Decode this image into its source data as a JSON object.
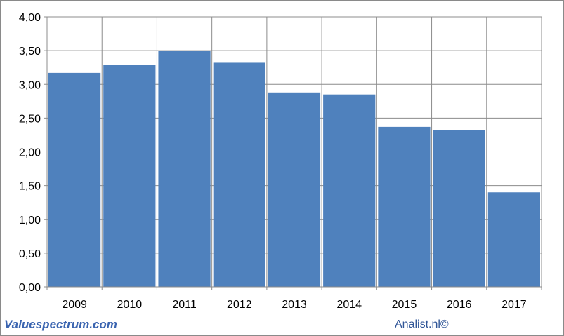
{
  "chart_data": {
    "type": "bar",
    "categories": [
      "2009",
      "2010",
      "2011",
      "2012",
      "2013",
      "2014",
      "2015",
      "2016",
      "2017"
    ],
    "values": [
      3.17,
      3.29,
      3.5,
      3.32,
      2.88,
      2.85,
      2.37,
      2.32,
      1.4
    ],
    "ylim": [
      0,
      4
    ],
    "yticks": [
      "0,00",
      "0,50",
      "1,00",
      "1,50",
      "2,00",
      "2,50",
      "3,00",
      "3,50",
      "4,00"
    ],
    "grid": true,
    "bar_color": "#4f81bd",
    "grid_color": "#8c8c8c"
  },
  "footer": {
    "source_left": "Valuespectrum.com",
    "source_right": "Analist.nl©"
  }
}
